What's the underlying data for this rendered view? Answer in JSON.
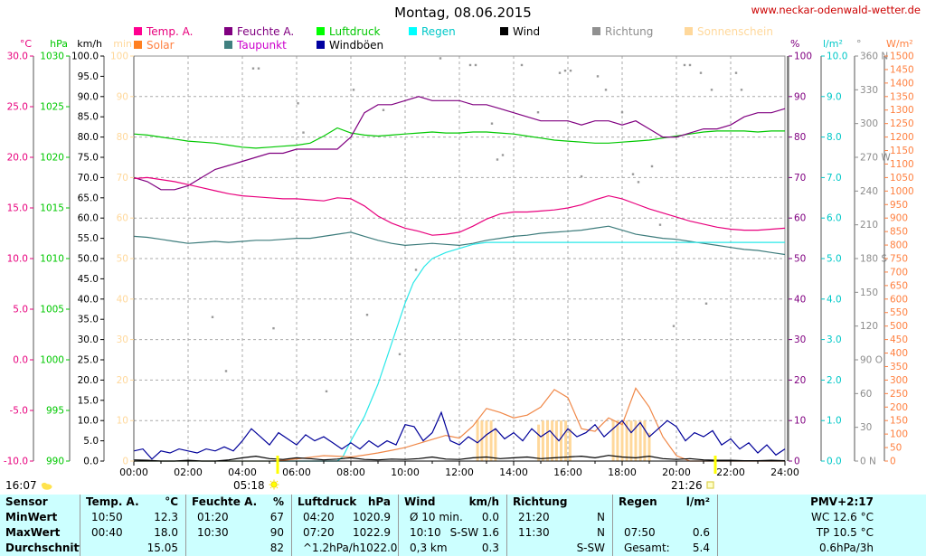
{
  "header": {
    "title": "Montag, 08.06.2015",
    "website": "www.neckar-odenwald-wetter.de"
  },
  "legend": {
    "items": [
      {
        "label": "Temp. A.",
        "box": "#ff0090",
        "text": "#e8007d",
        "row": 0,
        "col": 0
      },
      {
        "label": "Feuchte A.",
        "box": "#800080",
        "text": "#800080",
        "row": 0,
        "col": 1
      },
      {
        "label": "Luftdruck",
        "box": "#00ff00",
        "text": "#00c800",
        "row": 0,
        "col": 2
      },
      {
        "label": "Regen",
        "box": "#00ffff",
        "text": "#00c8c8",
        "row": 0,
        "col": 3
      },
      {
        "label": "Wind",
        "box": "#000000",
        "text": "#000000",
        "row": 0,
        "col": 4
      },
      {
        "label": "Richtung",
        "box": "#909090",
        "text": "#8c8c8c",
        "row": 0,
        "col": 5
      },
      {
        "label": "Sonnenschein",
        "box": "#ffd89b",
        "text": "#ffd89b",
        "row": 0,
        "col": 6
      },
      {
        "label": "Solar",
        "box": "#ff8020",
        "text": "#ff8040",
        "row": 1,
        "col": 0
      },
      {
        "label": "Taupunkt",
        "box": "#408080",
        "text": "#cc00cc",
        "row": 1,
        "col": 1
      },
      {
        "label": "Windböen",
        "box": "#0000a0",
        "text": "#000000",
        "row": 1,
        "col": 2
      }
    ]
  },
  "chart_data": {
    "type": "line",
    "title": "Montag, 08.06.2015",
    "grid": true,
    "x_axis": {
      "min": 0,
      "max": 24,
      "major_tick_hours": 2,
      "minor_tick_hours": 1,
      "labels": [
        "00:00",
        "02:00",
        "04:00",
        "06:00",
        "08:00",
        "10:00",
        "12:00",
        "14:00",
        "16:00",
        "18:00",
        "20:00",
        "22:00",
        "24:00"
      ]
    },
    "axes_left": [
      {
        "name": "temp",
        "title": "°C",
        "color": "#e8007d",
        "min": -10,
        "max": 30,
        "step": 5,
        "decimals": 1
      },
      {
        "name": "pressure",
        "title": "hPa",
        "color": "#00c800",
        "min": 990,
        "max": 1030,
        "step": 5,
        "decimals": 0
      },
      {
        "name": "wind",
        "title": "km/h",
        "color": "#000000",
        "min": 0,
        "max": 100,
        "step": 5,
        "decimals": 1
      },
      {
        "name": "sunshine",
        "title": "min",
        "color": "#ffd89b",
        "min": 0,
        "max": 100,
        "step": 10,
        "decimals": 0
      }
    ],
    "axes_right": [
      {
        "name": "humidity",
        "title": "%",
        "color": "#800080",
        "min": 0,
        "max": 100,
        "step": 10,
        "decimals": 0
      },
      {
        "name": "rain",
        "title": "l/m²",
        "color": "#00c8c8",
        "min": 0,
        "max": 10,
        "step": 1,
        "decimals": 1
      },
      {
        "name": "direction",
        "title": "°",
        "color": "#8c8c8c",
        "min": 0,
        "max": 360,
        "step": 30,
        "tick_labels": [
          "360 N",
          "330",
          "300",
          "270 W",
          "240",
          "210",
          "180 S",
          "150",
          "120",
          "90 O",
          "60",
          "30",
          "0 N"
        ]
      },
      {
        "name": "solar",
        "title": "W/m²",
        "color": "#ff8040",
        "min": 0,
        "max": 1500,
        "step": 50,
        "decimals": 0
      }
    ],
    "sun_events": {
      "moonrise": "16:07",
      "sunrise": "05:18",
      "sunset": "21:26"
    },
    "series": [
      {
        "name": "Sonnenschein",
        "axis": "sunshine",
        "color": "#ffd89b",
        "style": "bars",
        "points": [
          [
            12.67,
            10
          ],
          [
            12.83,
            10
          ],
          [
            13.0,
            10
          ],
          [
            13.17,
            10
          ],
          [
            13.33,
            8
          ],
          [
            14.92,
            9
          ],
          [
            15.08,
            10
          ],
          [
            15.25,
            10
          ],
          [
            15.42,
            10
          ],
          [
            15.58,
            10
          ],
          [
            15.75,
            10
          ],
          [
            15.92,
            10
          ],
          [
            16.08,
            8
          ],
          [
            17.67,
            10
          ],
          [
            17.83,
            10
          ],
          [
            18.0,
            10
          ],
          [
            18.17,
            10
          ],
          [
            18.33,
            10
          ],
          [
            18.5,
            10
          ],
          [
            18.67,
            10
          ],
          [
            18.83,
            10
          ],
          [
            19.0,
            7
          ]
        ]
      },
      {
        "name": "Luftdruck",
        "axis": "pressure",
        "color": "#00c800",
        "style": "line",
        "start_h": 0,
        "interval_h": 0.5,
        "values": [
          1022.3,
          1022.2,
          1022.0,
          1021.8,
          1021.6,
          1021.5,
          1021.4,
          1021.2,
          1021.0,
          1020.9,
          1021.0,
          1021.1,
          1021.2,
          1021.4,
          1022.1,
          1022.9,
          1022.4,
          1022.2,
          1022.1,
          1022.2,
          1022.3,
          1022.4,
          1022.5,
          1022.4,
          1022.4,
          1022.5,
          1022.5,
          1022.4,
          1022.3,
          1022.1,
          1021.9,
          1021.7,
          1021.6,
          1021.5,
          1021.4,
          1021.4,
          1021.5,
          1021.6,
          1021.7,
          1021.9,
          1022.1,
          1022.3,
          1022.5,
          1022.6,
          1022.6,
          1022.6,
          1022.5,
          1022.6,
          1022.6
        ]
      },
      {
        "name": "Feuchte A.",
        "axis": "humidity",
        "color": "#800080",
        "style": "line",
        "start_h": 0,
        "interval_h": 0.5,
        "values": [
          70,
          69,
          67,
          67,
          68,
          70,
          72,
          73,
          74,
          75,
          76,
          76,
          77,
          77,
          77,
          77,
          80,
          86,
          88,
          88,
          89,
          90,
          89,
          89,
          89,
          88,
          88,
          87,
          86,
          85,
          84,
          84,
          84,
          83,
          84,
          84,
          83,
          84,
          82,
          80,
          80,
          81,
          82,
          82,
          83,
          85,
          86,
          86,
          87
        ]
      },
      {
        "name": "Temp. A.",
        "axis": "temp",
        "color": "#e8007d",
        "style": "line",
        "start_h": 0,
        "interval_h": 0.5,
        "values": [
          17.9,
          18.0,
          17.8,
          17.6,
          17.3,
          17.0,
          16.7,
          16.4,
          16.2,
          16.1,
          16.0,
          15.9,
          15.9,
          15.8,
          15.7,
          16.0,
          15.9,
          15.2,
          14.2,
          13.5,
          13.0,
          12.7,
          12.3,
          12.4,
          12.6,
          13.2,
          13.9,
          14.4,
          14.6,
          14.6,
          14.7,
          14.8,
          15.0,
          15.3,
          15.8,
          16.2,
          15.9,
          15.4,
          14.9,
          14.5,
          14.1,
          13.7,
          13.4,
          13.1,
          12.9,
          12.8,
          12.8,
          12.9,
          13.0
        ]
      },
      {
        "name": "Taupunkt",
        "axis": "temp",
        "color": "#3d7c7c",
        "style": "line",
        "start_h": 0,
        "interval_h": 0.5,
        "values": [
          12.2,
          12.1,
          11.9,
          11.7,
          11.5,
          11.6,
          11.7,
          11.6,
          11.7,
          11.8,
          11.8,
          11.9,
          12.0,
          12.0,
          12.2,
          12.4,
          12.6,
          12.2,
          11.8,
          11.5,
          11.3,
          11.4,
          11.5,
          11.4,
          11.3,
          11.5,
          11.8,
          12.0,
          12.2,
          12.3,
          12.5,
          12.6,
          12.7,
          12.8,
          13.0,
          13.2,
          12.8,
          12.4,
          12.2,
          12.0,
          11.9,
          11.7,
          11.5,
          11.3,
          11.1,
          10.9,
          10.8,
          10.6,
          10.4
        ]
      },
      {
        "name": "Regen",
        "axis": "rain",
        "color": "#2ae8e8",
        "style": "line",
        "points": [
          [
            0,
            0
          ],
          [
            7.5,
            0
          ],
          [
            7.7,
            0.1
          ],
          [
            8,
            0.5
          ],
          [
            8.5,
            1.1
          ],
          [
            9,
            1.9
          ],
          [
            9.5,
            2.9
          ],
          [
            10,
            3.9
          ],
          [
            10.3,
            4.4
          ],
          [
            10.7,
            4.8
          ],
          [
            11,
            5.0
          ],
          [
            11.5,
            5.15
          ],
          [
            12,
            5.25
          ],
          [
            12.5,
            5.35
          ],
          [
            13,
            5.4
          ],
          [
            24,
            5.4
          ]
        ]
      },
      {
        "name": "Solar",
        "axis": "solar",
        "color": "#f08848",
        "style": "line",
        "start_h": 0,
        "interval_h": 0.5,
        "values": [
          0,
          0,
          0,
          0,
          0,
          0,
          0,
          0,
          0,
          0,
          0,
          3,
          8,
          14,
          20,
          18,
          15,
          22,
          30,
          40,
          50,
          65,
          80,
          95,
          85,
          130,
          195,
          180,
          160,
          170,
          200,
          265,
          235,
          120,
          110,
          160,
          135,
          270,
          200,
          90,
          20,
          0,
          0,
          0,
          0,
          0,
          0,
          0,
          0
        ]
      },
      {
        "name": "Windböen",
        "axis": "wind",
        "color": "#000099",
        "style": "line",
        "start_h": 0,
        "interval_h": 0.33333,
        "values": [
          2.5,
          3,
          0.5,
          2.5,
          2,
          3,
          2.5,
          2,
          3,
          2.5,
          3.5,
          2.5,
          5,
          8,
          6,
          4,
          7,
          5.5,
          4,
          6.5,
          5,
          6,
          4.5,
          3,
          4.5,
          3,
          5,
          3.5,
          5,
          4,
          9,
          8.5,
          5,
          7,
          12,
          5,
          4,
          6,
          4.5,
          6.5,
          8,
          5.5,
          7,
          5,
          8,
          6,
          7.5,
          5,
          8,
          6,
          7,
          9,
          6,
          8,
          10,
          7,
          9.5,
          6,
          8,
          10,
          8.5,
          5,
          7,
          6,
          7.5,
          4,
          5.5,
          3,
          4.5,
          2,
          4,
          1.5,
          3
        ]
      },
      {
        "name": "Wind",
        "axis": "wind",
        "color": "#000000",
        "style": "line",
        "start_h": 0,
        "interval_h": 0.5,
        "values": [
          0.3,
          0.2,
          0.0,
          0.0,
          0.2,
          0.0,
          0.0,
          0.3,
          0.8,
          1.2,
          0.6,
          0.4,
          0.8,
          0.6,
          0.3,
          0.5,
          0.8,
          0.4,
          0.3,
          0.5,
          0.4,
          0.6,
          1.0,
          0.5,
          0.4,
          0.8,
          1.0,
          0.6,
          0.8,
          1.0,
          0.6,
          0.8,
          1.0,
          1.2,
          0.8,
          1.4,
          1.0,
          0.8,
          1.2,
          0.6,
          0.4,
          0.6,
          0.3,
          0.2,
          0.2,
          0.1,
          0.1,
          0.2,
          0.1
        ]
      },
      {
        "name": "Richtung",
        "axis": "direction",
        "color": "#999999",
        "style": "dots",
        "points": [
          [
            2.9,
            128
          ],
          [
            3.4,
            80
          ],
          [
            4.4,
            349
          ],
          [
            4.6,
            349
          ],
          [
            5.15,
            118
          ],
          [
            6.05,
            318
          ],
          [
            6.25,
            292
          ],
          [
            7.1,
            62
          ],
          [
            8.1,
            330
          ],
          [
            8.6,
            130
          ],
          [
            9.2,
            312
          ],
          [
            9.8,
            95
          ],
          [
            10.4,
            170
          ],
          [
            11.3,
            358
          ],
          [
            12.4,
            352
          ],
          [
            12.6,
            352
          ],
          [
            13.2,
            300
          ],
          [
            13.4,
            268
          ],
          [
            13.6,
            272
          ],
          [
            14.3,
            352
          ],
          [
            14.9,
            310
          ],
          [
            15.7,
            345
          ],
          [
            15.9,
            347
          ],
          [
            16.1,
            347
          ],
          [
            16.5,
            253
          ],
          [
            17.1,
            342
          ],
          [
            17.4,
            330
          ],
          [
            18.0,
            310
          ],
          [
            18.4,
            255
          ],
          [
            18.6,
            248
          ],
          [
            19.1,
            262
          ],
          [
            19.4,
            210
          ],
          [
            19.9,
            120
          ],
          [
            20.3,
            352
          ],
          [
            20.5,
            352
          ],
          [
            20.9,
            345
          ],
          [
            21.1,
            140
          ],
          [
            21.3,
            330
          ],
          [
            22.2,
            345
          ],
          [
            22.4,
            330
          ]
        ]
      }
    ]
  },
  "summary_table": {
    "row_labels": [
      "Sensor",
      "MinWert",
      "MaxWert",
      "Durchschnitt"
    ],
    "sections": [
      {
        "title": "Temp. A.",
        "unit": "°C",
        "rows": [
          [
            "10:50",
            "12.3"
          ],
          [
            "00:40",
            "18.0"
          ],
          [
            "",
            "15.05"
          ]
        ]
      },
      {
        "title": "Feuchte A.",
        "unit": "%",
        "rows": [
          [
            "01:20",
            "67"
          ],
          [
            "10:30",
            "90"
          ],
          [
            "",
            "82"
          ]
        ]
      },
      {
        "title": "Luftdruck",
        "unit": "hPa",
        "rows": [
          [
            "04:20",
            "1020.9"
          ],
          [
            "07:20",
            "1022.9"
          ],
          [
            "^1.2hPa/h",
            "1022.0"
          ]
        ]
      },
      {
        "title": "Wind",
        "unit": "km/h",
        "rows": [
          [
            "Ø 10 min.",
            "0.0"
          ],
          [
            "10:10",
            "S-SW 1.6"
          ],
          [
            "0,3 km",
            "0.3"
          ]
        ]
      },
      {
        "title": "Richtung",
        "unit": "",
        "rows": [
          [
            "21:20",
            "N"
          ],
          [
            "11:30",
            "N"
          ],
          [
            "",
            "S-SW"
          ]
        ]
      },
      {
        "title": "Regen",
        "unit": "l/m²",
        "rows": [
          [
            "",
            ""
          ],
          [
            "07:50",
            "0.6"
          ],
          [
            "Gesamt:",
            "5.4"
          ]
        ]
      },
      {
        "title": "PMV+2:17",
        "unit": "",
        "align": "right",
        "rows": [
          [
            "",
            "WC 12.6 °C"
          ],
          [
            "",
            "TP 10.5 °C"
          ],
          [
            "",
            "0.6hPa/3h"
          ]
        ]
      }
    ]
  }
}
